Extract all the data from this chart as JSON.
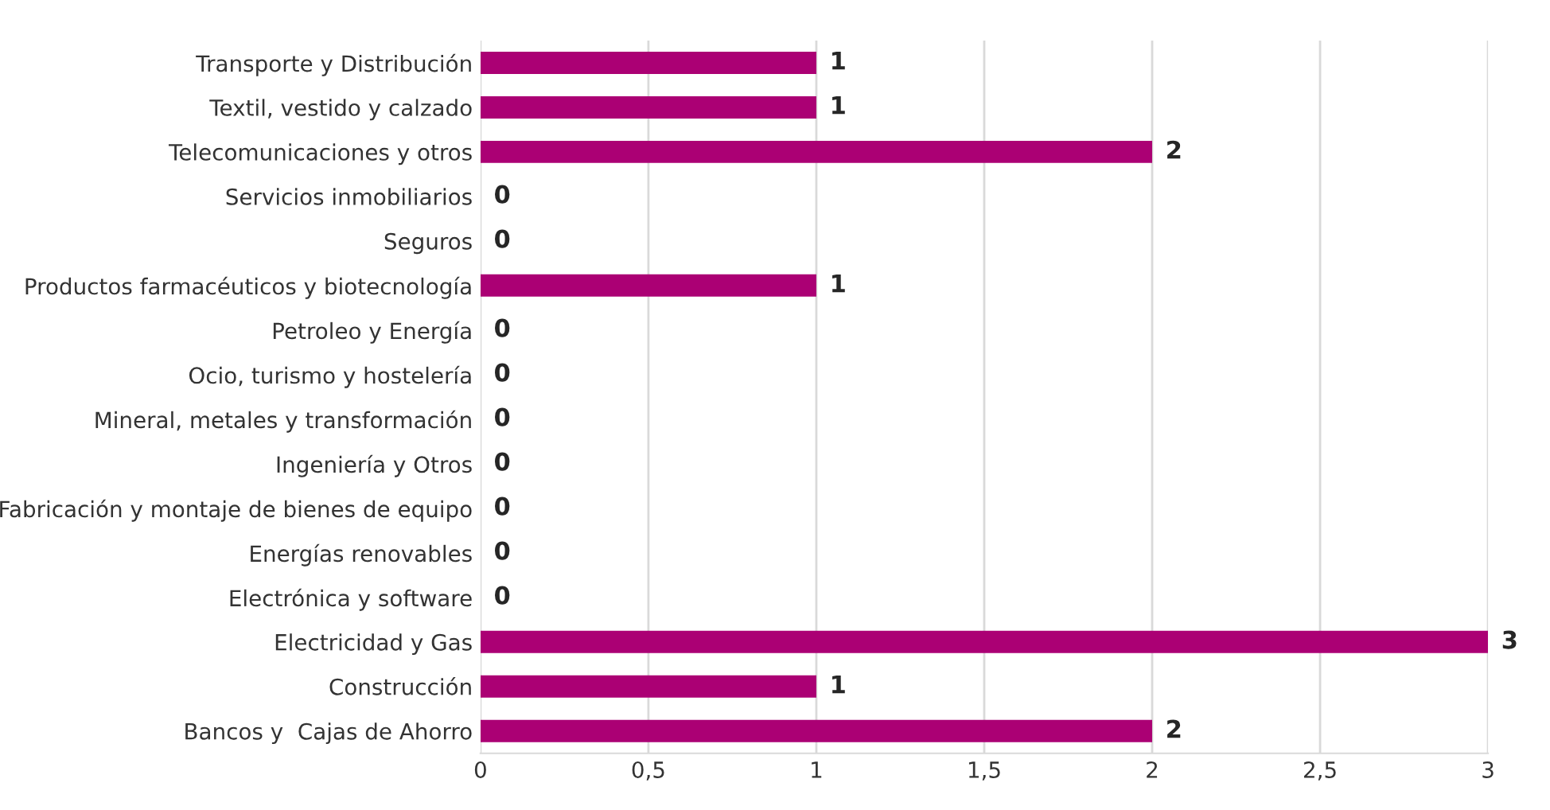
{
  "chart_data": {
    "type": "bar",
    "orientation": "horizontal",
    "categories": [
      "Transporte y Distribución",
      "Textil, vestido y calzado",
      "Telecomunicaciones y otros",
      "Servicios inmobiliarios",
      "Seguros",
      "Productos farmacéuticos y biotecnología",
      "Petroleo y Energía",
      "Ocio, turismo y hostelería",
      "Mineral, metales y transformación",
      "Ingeniería y Otros",
      "Fabricación y montaje de bienes de equipo",
      "Energías renovables",
      "Electrónica y software",
      "Electricidad y Gas",
      "Construcción",
      "Bancos y  Cajas de Ahorro"
    ],
    "values": [
      1,
      1,
      2,
      0,
      0,
      1,
      0,
      0,
      0,
      0,
      0,
      0,
      0,
      3,
      1,
      2
    ],
    "color": "#ab0074",
    "xlim": [
      0,
      3
    ],
    "xticks": [
      0,
      {
        "value": 0.5,
        "label": "0,5"
      },
      1,
      {
        "value": 1.5,
        "label": "1,5"
      },
      2,
      {
        "value": 2.5,
        "label": "2,5"
      },
      3
    ],
    "grid": "x",
    "data_labels": true
  }
}
